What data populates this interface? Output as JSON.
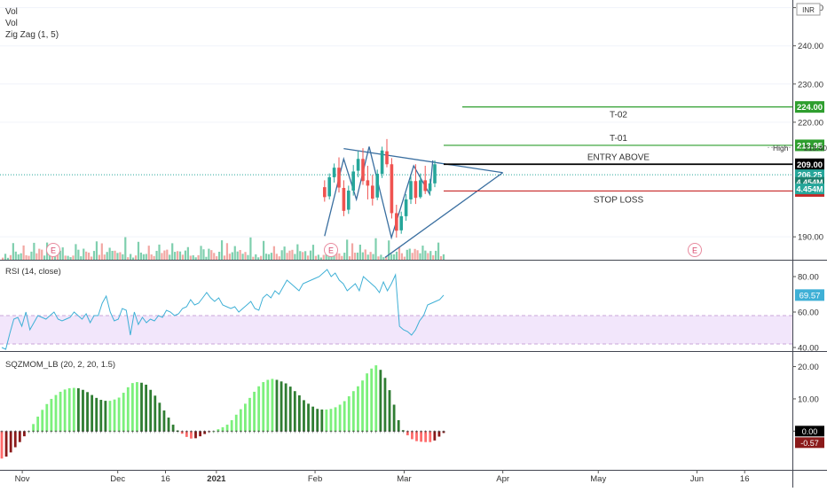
{
  "header": {
    "labels": [
      "Vol",
      "Vol",
      "Zig Zag (1, 5)"
    ],
    "currency": "INR"
  },
  "colors": {
    "up": "#26a69a",
    "down": "#ef5350",
    "vol_up": "#7fcfae",
    "vol_down": "#f2a7a3",
    "pattern": "#3a6fa0",
    "target": "#2e9e2e",
    "entry": "#000000",
    "stop": "#c62828",
    "rsi_line": "#3fb0d6",
    "rsi_band": "#f2e6fb",
    "mom_light_green": "#7cf07c",
    "mom_dark_green": "#2f7d32",
    "mom_light_red": "#ff6b6b",
    "mom_dark_red": "#8b1a1a"
  },
  "chart_data": [
    {
      "type": "candlestick",
      "title": "",
      "y_ticks": [
        "250.00",
        "240.00",
        "230.00",
        "220.00",
        "190.00"
      ],
      "x_ticks": [
        "Nov",
        "Dec",
        "16",
        "2021",
        "Feb",
        "Mar",
        "Apr",
        "May",
        "Jun",
        "16"
      ],
      "ylim": [
        184,
        252
      ],
      "candles": [
        {
          "o": 203.0,
          "h": 204.8,
          "l": 199.2,
          "c": 200.4
        },
        {
          "o": 200.6,
          "h": 206.6,
          "l": 199.8,
          "c": 205.6
        },
        {
          "o": 205.6,
          "h": 209.2,
          "l": 204.2,
          "c": 208.1
        },
        {
          "o": 208.1,
          "h": 210.8,
          "l": 201.6,
          "c": 202.9
        },
        {
          "o": 202.8,
          "h": 204.8,
          "l": 195.4,
          "c": 196.8
        },
        {
          "o": 197.1,
          "h": 203.4,
          "l": 196.0,
          "c": 202.1
        },
        {
          "o": 202.1,
          "h": 208.8,
          "l": 200.8,
          "c": 207.1
        },
        {
          "o": 207.3,
          "h": 212.4,
          "l": 205.6,
          "c": 210.4
        },
        {
          "o": 210.4,
          "h": 213.2,
          "l": 203.6,
          "c": 204.6
        },
        {
          "o": 204.8,
          "h": 208.6,
          "l": 199.8,
          "c": 203.4
        },
        {
          "o": 203.4,
          "h": 206.2,
          "l": 198.2,
          "c": 200.0
        },
        {
          "o": 200.3,
          "h": 207.6,
          "l": 199.6,
          "c": 206.5
        },
        {
          "o": 206.5,
          "h": 213.6,
          "l": 205.4,
          "c": 212.6
        },
        {
          "o": 212.4,
          "h": 215.6,
          "l": 208.2,
          "c": 209.0
        },
        {
          "o": 209.0,
          "h": 210.6,
          "l": 194.8,
          "c": 196.2
        },
        {
          "o": 196.2,
          "h": 198.4,
          "l": 189.8,
          "c": 191.6
        },
        {
          "o": 191.7,
          "h": 196.6,
          "l": 190.8,
          "c": 195.4
        },
        {
          "o": 195.4,
          "h": 201.2,
          "l": 194.2,
          "c": 199.8
        },
        {
          "o": 199.8,
          "h": 205.8,
          "l": 198.6,
          "c": 204.6
        },
        {
          "o": 204.6,
          "h": 209.0,
          "l": 198.6,
          "c": 200.2
        },
        {
          "o": 200.4,
          "h": 206.6,
          "l": 200.0,
          "c": 204.8
        },
        {
          "o": 204.8,
          "h": 208.6,
          "l": 201.2,
          "c": 202.0
        },
        {
          "o": 202.0,
          "h": 205.2,
          "l": 200.8,
          "c": 204.0
        },
        {
          "o": 204.0,
          "h": 210.0,
          "l": 203.0,
          "c": 209.0
        }
      ],
      "volume": [
        {
          "v": 0.9,
          "up": false
        },
        {
          "v": 1.3,
          "up": true
        },
        {
          "v": 0.6,
          "up": true
        },
        {
          "v": 1.1,
          "up": false
        },
        {
          "v": 4.2,
          "up": true
        },
        {
          "v": 2.3,
          "up": true
        },
        {
          "v": 1.2,
          "up": true
        },
        {
          "v": 2.4,
          "up": true
        },
        {
          "v": 3.1,
          "up": false
        },
        {
          "v": 1.6,
          "up": false
        },
        {
          "v": 0.9,
          "up": false
        },
        {
          "v": 2.2,
          "up": true
        },
        {
          "v": 4.4,
          "up": true
        },
        {
          "v": 1.5,
          "up": false
        },
        {
          "v": 3.6,
          "up": false
        },
        {
          "v": 2.2,
          "up": false
        },
        {
          "v": 1.7,
          "up": true
        },
        {
          "v": 3.8,
          "up": true
        },
        {
          "v": 2.1,
          "up": true
        },
        {
          "v": 2.3,
          "up": false
        },
        {
          "v": 1.9,
          "up": true
        },
        {
          "v": 1.7,
          "up": false
        },
        {
          "v": 2.0,
          "up": true
        },
        {
          "v": 4.9,
          "up": true
        }
      ],
      "zigzag": [
        {
          "date": "2021-02-04",
          "price": 190.2
        },
        {
          "date": "2021-02-10",
          "price": 210.4
        },
        {
          "date": "2021-02-14",
          "price": 199.8
        },
        {
          "date": "2021-02-18",
          "price": 213.6
        },
        {
          "date": "2021-02-25",
          "price": 189.8
        },
        {
          "date": "2021-03-04",
          "price": 208.6
        },
        {
          "date": "2021-03-09",
          "price": 201.2
        },
        {
          "date": "2021-03-10",
          "price": 210.0
        }
      ],
      "triangle": {
        "upper": [
          {
            "date": "2021-02-10",
            "price": 213.1
          },
          {
            "date": "2021-04-01",
            "price": 206.8
          }
        ],
        "lower": [
          {
            "date": "2021-02-23",
            "price": 184.6
          },
          {
            "date": "2021-04-01",
            "price": 206.8
          }
        ]
      },
      "levels": [
        {
          "name": "T-02",
          "label": "T-02",
          "price": 224.0,
          "tag": "224.00",
          "color": "#2e9e2e"
        },
        {
          "name": "T-01",
          "label": "T-01",
          "price": 213.95,
          "tag": "213.95",
          "color": "#2e9e2e"
        },
        {
          "name": "entry",
          "label": "ENTRY ABOVE",
          "price": 209.0,
          "tag": "209.00",
          "color": "#000000"
        },
        {
          "name": "stop",
          "label": "STOP LOSS",
          "price": 202.0,
          "tag": "202.00",
          "color": "#c62828"
        }
      ],
      "price_tags": [
        {
          "name": "high",
          "text": "213.40",
          "prefix": "High",
          "price": 213.4,
          "color": "#ffffff",
          "textcolor": "#333333"
        },
        {
          "name": "last",
          "text": "206.25",
          "price": 206.25,
          "color": "#26a69a",
          "textcolor": "#ffffff"
        },
        {
          "name": "vol1",
          "text": "4.454M",
          "price": 204.25,
          "color": "#1b7f6c",
          "textcolor": "#ffffff"
        },
        {
          "name": "vol2",
          "text": "4.454M",
          "price": 202.55,
          "color": "#26a69a",
          "textcolor": "#ffffff"
        }
      ],
      "earnings": [
        {
          "text": "E"
        },
        {
          "text": "E"
        },
        {
          "text": "E"
        }
      ]
    },
    {
      "type": "line",
      "title": "RSI (14, close)",
      "ylim": [
        38,
        88
      ],
      "y_ticks": [
        "80.00",
        "60.00",
        "40.00"
      ],
      "band": [
        42,
        58
      ],
      "last": "69.57",
      "series": [
        {
          "values": [
            40,
            39,
            48,
            56,
            57,
            52,
            60,
            50,
            54,
            58,
            57,
            56,
            58,
            60,
            56,
            55,
            56,
            57,
            60,
            58,
            56,
            59,
            54,
            58,
            58,
            65,
            69,
            60,
            55,
            56,
            62,
            61,
            47,
            60,
            53,
            57,
            54,
            56,
            55,
            58,
            57,
            61,
            60,
            58,
            59,
            62,
            63,
            67,
            64,
            65,
            68,
            71,
            68,
            66,
            68,
            64,
            63,
            62,
            63,
            60,
            62,
            64,
            66,
            62,
            61,
            68,
            70,
            68,
            72,
            70,
            74,
            78,
            76,
            74,
            72,
            76,
            77,
            78,
            79,
            80,
            82,
            84,
            80,
            82,
            78,
            76,
            72,
            74,
            76,
            72,
            80,
            78,
            76,
            74,
            71,
            77,
            72,
            76,
            81,
            52,
            50,
            49,
            47,
            50,
            55,
            58,
            64,
            65,
            66,
            67,
            69.57
          ]
        }
      ]
    },
    {
      "type": "bar",
      "title": "SQZMOM_LB (20, 2, 20, 1.5)",
      "ylim": [
        -12,
        24
      ],
      "y_ticks": [
        "20.00",
        "10.00",
        "0.00"
      ],
      "tags": [
        "0.00",
        "-0.57"
      ],
      "series": [
        {
          "values": [
            -8.5,
            -7.9,
            -6.6,
            -5.0,
            -3.4,
            -1.6,
            0.0,
            2.2,
            4.5,
            6.6,
            8.4,
            10.0,
            11.2,
            12.2,
            12.9,
            13.3,
            13.4,
            13.3,
            12.8,
            12.1,
            11.2,
            10.3,
            9.7,
            9.4,
            9.4,
            9.8,
            10.4,
            11.9,
            13.6,
            14.9,
            15.2,
            15.0,
            14.4,
            12.8,
            11.0,
            8.8,
            6.4,
            4.2,
            2.0,
            0.2,
            -0.8,
            -1.8,
            -2.3,
            -2.2,
            -1.6,
            -0.9,
            -0.3,
            0.0,
            0.6,
            1.2,
            2.0,
            3.4,
            5.1,
            6.8,
            8.5,
            10.3,
            12.2,
            13.9,
            15.2,
            15.9,
            16.2,
            15.9,
            15.4,
            14.8,
            13.8,
            12.4,
            11.1,
            9.6,
            8.5,
            7.6,
            6.9,
            6.7,
            6.7,
            6.9,
            7.4,
            8.2,
            9.3,
            10.8,
            12.4,
            13.9,
            15.7,
            17.9,
            19.4,
            20.4,
            19.0,
            16.5,
            12.7,
            8.2,
            3.4,
            0.3,
            -1.3,
            -2.5,
            -3.1,
            -3.3,
            -3.4,
            -3.4,
            -2.9,
            -1.7,
            -0.57
          ]
        }
      ]
    }
  ]
}
